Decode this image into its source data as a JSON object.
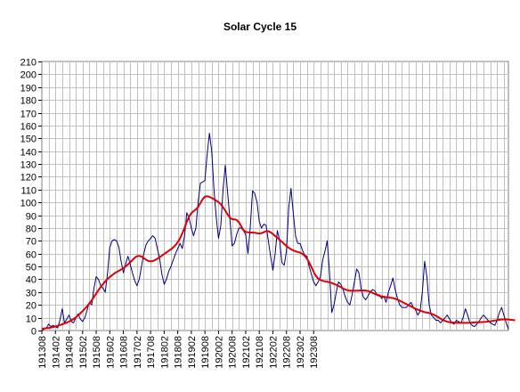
{
  "chart_data": {
    "type": "line",
    "title": "Solar Cycle 15",
    "xlabel": "",
    "ylabel": "",
    "ylim": [
      0,
      210
    ],
    "y_ticks": [
      0,
      10,
      20,
      30,
      40,
      50,
      60,
      70,
      80,
      90,
      100,
      110,
      120,
      130,
      140,
      150,
      160,
      170,
      180,
      190,
      200,
      210
    ],
    "x_tick_labels": [
      "191308",
      "191402",
      "191408",
      "191502",
      "191508",
      "191602",
      "191608",
      "191702",
      "191708",
      "191802",
      "191808",
      "191902",
      "191908",
      "192002",
      "192008",
      "192102",
      "192108",
      "192202",
      "192208",
      "192302",
      "192308"
    ],
    "grid": true,
    "legend": "none",
    "colors": {
      "monthly": "#000080",
      "smoothed": "#e00000",
      "grid": "#c0c0c0"
    },
    "series": [
      {
        "key": "monthly",
        "values": [
          0,
          1,
          2,
          5,
          3,
          4,
          3,
          2,
          8,
          17,
          6,
          9,
          12,
          7,
          6,
          10,
          13,
          9,
          7,
          10,
          16,
          22,
          20,
          33,
          42,
          40,
          35,
          33,
          30,
          45,
          65,
          70,
          71,
          70,
          65,
          54,
          45,
          52,
          58,
          52,
          45,
          39,
          35,
          40,
          50,
          60,
          67,
          70,
          72,
          74,
          72,
          64,
          56,
          44,
          36,
          40,
          46,
          50,
          55,
          60,
          64,
          68,
          64,
          74,
          92,
          88,
          80,
          74,
          80,
          100,
          115,
          116,
          117,
          138,
          154,
          140,
          110,
          88,
          72,
          82,
          110,
          129,
          108,
          88,
          66,
          68,
          75,
          80,
          80,
          78,
          75,
          60,
          80,
          109,
          107,
          100,
          85,
          80,
          83,
          82,
          70,
          58,
          47,
          60,
          78,
          70,
          53,
          51,
          62,
          96,
          111,
          92,
          74,
          68,
          68,
          63,
          59,
          58,
          50,
          44,
          38,
          35,
          38,
          42,
          55,
          62,
          70,
          46,
          14,
          20,
          30,
          38,
          36,
          32,
          26,
          22,
          20,
          28,
          38,
          48,
          45,
          32,
          26,
          24,
          27,
          30,
          32,
          31,
          28,
          28,
          25,
          27,
          22,
          30,
          35,
          41,
          32,
          25,
          20,
          18,
          18,
          18,
          20,
          22,
          18,
          16,
          12,
          15,
          30,
          54,
          42,
          20,
          12,
          10,
          8,
          8,
          6,
          8,
          10,
          12,
          9,
          6,
          5,
          8,
          7,
          6,
          10,
          17,
          12,
          6,
          4,
          3,
          5,
          7,
          10,
          12,
          10,
          8,
          6,
          5,
          4,
          8,
          14,
          18,
          12,
          6,
          1
        ]
      },
      {
        "key": "smoothed",
        "values": [
          1.5,
          1.6,
          1.8,
          2,
          2.3,
          2.7,
          3.2,
          3.7,
          4.3,
          4.9,
          5.5,
          6.2,
          7,
          7.9,
          9,
          10.3,
          11.8,
          13.5,
          15.2,
          17,
          19,
          21.2,
          23.6,
          26.2,
          28.8,
          31.5,
          34,
          36.3,
          38.4,
          40.2,
          41.8,
          43.2,
          44.5,
          45.6,
          46.6,
          47.6,
          48.7,
          50,
          51.5,
          53.2,
          55,
          56.8,
          58,
          58.3,
          57.7,
          56.5,
          55.3,
          54.3,
          54,
          54.3,
          55,
          56,
          57.2,
          58.5,
          59.8,
          61,
          62.2,
          63.4,
          64.8,
          66.6,
          69,
          72,
          75.8,
          80.2,
          84.8,
          88.8,
          91.6,
          93.2,
          94.5,
          96.5,
          99.5,
          102.5,
          104.5,
          104.8,
          104.3,
          103.5,
          102.5,
          101.4,
          100.2,
          98.5,
          96.2,
          93.5,
          90.6,
          88.2,
          87,
          86.8,
          86.3,
          84.5,
          81.5,
          78.5,
          77,
          76.6,
          76.5,
          76.5,
          76.3,
          76,
          75.8,
          76,
          76.8,
          77.5,
          77.5,
          76.7,
          75.3,
          73.8,
          72.3,
          70.8,
          69.2,
          67.6,
          66,
          64.6,
          63.4,
          62.5,
          61.8,
          61.3,
          60.8,
          59.9,
          58.4,
          56.2,
          53.2,
          49.6,
          45.8,
          42.6,
          40.5,
          39.4,
          38.8,
          38.4,
          38.1,
          37.7,
          37.1,
          36.4,
          35.7,
          34.8,
          33.8,
          32.8,
          32,
          31.4,
          31.1,
          31,
          31,
          31.1,
          31.2,
          31.3,
          31.3,
          31.2,
          30.8,
          30.2,
          29.4,
          28.6,
          27.8,
          27.2,
          26.7,
          26.3,
          26.1,
          25.9,
          25.6,
          25.3,
          24.8,
          24.1,
          23.3,
          22.4,
          21.5,
          20.6,
          19.7,
          18.8,
          17.9,
          17,
          16.2,
          15.5,
          14.9,
          14.4,
          14,
          13.6,
          13.1,
          12.4,
          11.5,
          10.4,
          9.3,
          8.3,
          7.5,
          6.9,
          6.5,
          6.3,
          6.2,
          6.1,
          6,
          6,
          6,
          6,
          6,
          6.1,
          6.2,
          6.3,
          6.4,
          6.5,
          6.6,
          6.7,
          6.8,
          7,
          7.2,
          7.5,
          7.8,
          8.1,
          8.4,
          8.6,
          8.7,
          8.7,
          8.6,
          8.4,
          8.2,
          8
        ]
      }
    ]
  }
}
